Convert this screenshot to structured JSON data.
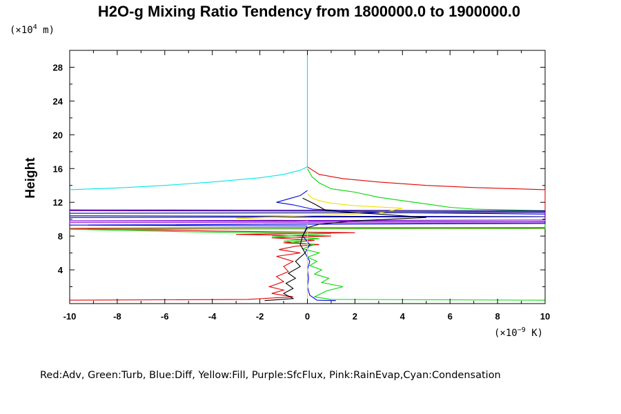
{
  "chart_data": {
    "type": "line",
    "title": "H2O-g Mixing Ratio Tendency from 1800000.0 to 1900000.0",
    "y_unit": {
      "base": "(×10",
      "exp": "4",
      "suffix": " m)"
    },
    "x_unit": {
      "base": "(×10",
      "exp": "−9",
      "suffix": " K)"
    },
    "ylabel": "Height",
    "xlabel": "",
    "legend_text": "Red:Adv, Green:Turb, Blue:Diff, Yellow:Fill, Purple:SfcFlux, Pink:RainEvap,Cyan:Condensation",
    "xlim": [
      -10,
      10
    ],
    "ylim": [
      0,
      30
    ],
    "grid": false,
    "x_ticks": [
      -10,
      -8,
      -6,
      -4,
      -2,
      0,
      2,
      4,
      6,
      8,
      10
    ],
    "y_ticks": [
      4,
      8,
      12,
      16,
      20,
      24,
      28
    ],
    "series": [
      {
        "key": "cyan",
        "color": "#00e5e5",
        "points": [
          [
            -10,
            13.5
          ],
          [
            -8,
            13.7
          ],
          [
            -6,
            14.0
          ],
          [
            -4,
            14.4
          ],
          [
            -2,
            14.9
          ],
          [
            -1,
            15.3
          ],
          [
            -0.3,
            15.8
          ],
          [
            0,
            16.2
          ],
          [
            0,
            30
          ]
        ]
      },
      {
        "key": "red",
        "color": "#e00000",
        "points": [
          [
            0,
            16.2
          ],
          [
            0.5,
            15.3
          ],
          [
            1.5,
            14.8
          ],
          [
            3,
            14.4
          ],
          [
            5,
            14.0
          ],
          [
            7,
            13.75
          ],
          [
            10,
            13.5
          ],
          [
            10,
            9.0
          ],
          [
            -2,
            9.0
          ],
          [
            -10,
            8.9
          ],
          [
            -4,
            8.6
          ],
          [
            2,
            8.4
          ],
          [
            -3,
            8.2
          ],
          [
            1,
            8.0
          ],
          [
            -1.5,
            7.8
          ],
          [
            0.3,
            7.5
          ],
          [
            -1,
            7.2
          ],
          [
            0.5,
            7.0
          ],
          [
            -0.5,
            6.8
          ],
          [
            -1.2,
            6.4
          ],
          [
            -0.3,
            6.0
          ],
          [
            -1.3,
            5.6
          ],
          [
            -0.6,
            5.0
          ],
          [
            -1.0,
            4.4
          ],
          [
            -0.8,
            3.8
          ],
          [
            -1.3,
            3.2
          ],
          [
            -1.0,
            2.6
          ],
          [
            -1.6,
            2.0
          ],
          [
            -1.0,
            1.6
          ],
          [
            -1.5,
            1.2
          ],
          [
            -0.6,
            0.8
          ],
          [
            -2.5,
            0.5
          ],
          [
            -10,
            0.4
          ]
        ]
      },
      {
        "key": "green",
        "color": "#00d800",
        "points": [
          [
            0,
            16.0
          ],
          [
            0.2,
            15.0
          ],
          [
            0.5,
            14.3
          ],
          [
            1,
            13.6
          ],
          [
            2,
            13.2
          ],
          [
            3,
            12.6
          ],
          [
            4,
            12.2
          ],
          [
            5,
            11.8
          ],
          [
            6,
            11.4
          ],
          [
            7,
            11.2
          ],
          [
            10,
            11.0
          ],
          [
            10,
            8.9
          ],
          [
            -10,
            8.8
          ],
          [
            -5,
            8.5
          ],
          [
            1,
            8.3
          ],
          [
            -1.5,
            8.0
          ],
          [
            0.5,
            7.7
          ],
          [
            -1,
            7.4
          ],
          [
            0.3,
            7.0
          ],
          [
            -0.2,
            6.5
          ],
          [
            0.5,
            6.0
          ],
          [
            0,
            5.5
          ],
          [
            0.4,
            5.0
          ],
          [
            0.1,
            4.5
          ],
          [
            0.6,
            4.0
          ],
          [
            0.3,
            3.5
          ],
          [
            0.9,
            3.0
          ],
          [
            0.6,
            2.5
          ],
          [
            1.5,
            2.0
          ],
          [
            0.8,
            1.5
          ],
          [
            0.3,
            0.8
          ],
          [
            1.0,
            0.5
          ],
          [
            10,
            0.4
          ]
        ]
      },
      {
        "key": "blue",
        "color": "#0000e0",
        "points": [
          [
            0,
            13.4
          ],
          [
            -0.3,
            12.8
          ],
          [
            -0.8,
            12.4
          ],
          [
            -1.3,
            12.0
          ],
          [
            -0.6,
            11.7
          ],
          [
            0.2,
            11.2
          ],
          [
            3,
            10.8
          ],
          [
            10,
            10.6
          ],
          [
            10,
            10.3
          ],
          [
            -10,
            10.2
          ],
          [
            -10,
            9.8
          ],
          [
            10,
            9.7
          ],
          [
            10,
            9.5
          ],
          [
            -10,
            9.3
          ],
          [
            0,
            9.2
          ],
          [
            -0.2,
            8.0
          ],
          [
            0.1,
            7.0
          ],
          [
            -0.1,
            6.0
          ],
          [
            0.1,
            5.0
          ],
          [
            0,
            4.0
          ],
          [
            0.05,
            3.0
          ],
          [
            0,
            2.0
          ],
          [
            0.1,
            1.0
          ],
          [
            0.4,
            0.4
          ],
          [
            1.2,
            0.35
          ]
        ]
      },
      {
        "key": "navy",
        "color": "#000080",
        "points": [
          [
            -10,
            11.1
          ],
          [
            10,
            11.0
          ],
          [
            10,
            10.8
          ],
          [
            -10,
            10.7
          ],
          [
            -10,
            10.4
          ],
          [
            10,
            10.3
          ]
        ]
      },
      {
        "key": "yellow",
        "color": "#f0e000",
        "points": [
          [
            0,
            13.0
          ],
          [
            0.2,
            12.5
          ],
          [
            0.5,
            12.2
          ],
          [
            1,
            11.9
          ],
          [
            2,
            11.6
          ],
          [
            4,
            11.3
          ],
          [
            3,
            10.7
          ],
          [
            -3,
            10.1
          ],
          [
            0,
            9.8
          ],
          [
            0,
            0.4
          ]
        ]
      },
      {
        "key": "purple",
        "color": "#9000d0",
        "points": [
          [
            -10,
            11.0
          ],
          [
            10,
            10.9
          ],
          [
            10,
            9.9
          ],
          [
            -10,
            9.8
          ],
          [
            -10,
            9.6
          ],
          [
            10,
            9.55
          ]
        ]
      },
      {
        "key": "black",
        "color": "#000000",
        "points": [
          [
            -0.2,
            12.5
          ],
          [
            0.3,
            11.8
          ],
          [
            0.8,
            11.0
          ],
          [
            3,
            10.6
          ],
          [
            5,
            10.2
          ],
          [
            2,
            9.8
          ],
          [
            0.5,
            9.4
          ],
          [
            0,
            9.0
          ],
          [
            -0.2,
            8.0
          ],
          [
            -0.3,
            7.0
          ],
          [
            -0.1,
            6.0
          ],
          [
            -0.5,
            5.0
          ],
          [
            -0.3,
            4.4
          ],
          [
            -0.8,
            3.6
          ],
          [
            -0.5,
            3.0
          ],
          [
            -0.9,
            2.4
          ],
          [
            -0.6,
            1.8
          ],
          [
            -1.0,
            1.2
          ],
          [
            -0.6,
            0.6
          ],
          [
            -1.8,
            0.35
          ]
        ]
      }
    ]
  }
}
